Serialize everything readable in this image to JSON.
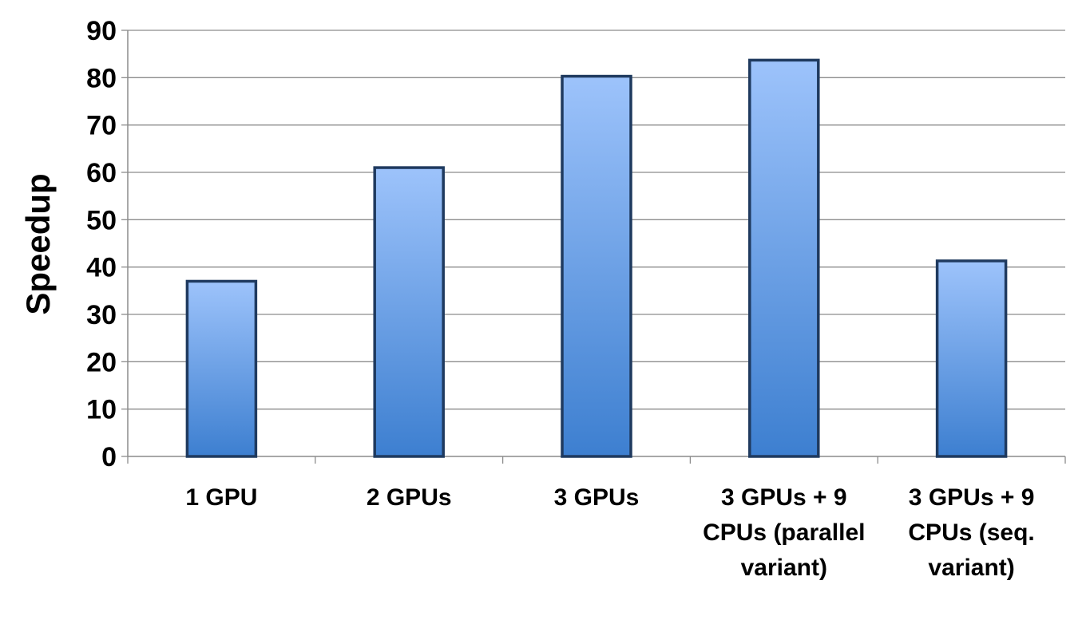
{
  "chart_data": {
    "type": "bar",
    "title": "",
    "xlabel": "",
    "ylabel": "Speedup",
    "ylim": [
      0,
      90
    ],
    "yticks": [
      0,
      10,
      20,
      30,
      40,
      50,
      60,
      70,
      80,
      90
    ],
    "categories": [
      "1 GPU",
      "2 GPUs",
      "3 GPUs",
      "3 GPUs + 9 CPUs (parallel variant)",
      "3 GPUs + 9 CPUs (seq. variant)"
    ],
    "category_lines": [
      [
        "1 GPU"
      ],
      [
        "2 GPUs"
      ],
      [
        "3 GPUs"
      ],
      [
        "3 GPUs + 9",
        "CPUs (parallel",
        "variant)"
      ],
      [
        "3 GPUs + 9",
        "CPUs (seq.",
        "variant)"
      ]
    ],
    "values": [
      37,
      61,
      80.3,
      83.7,
      41.3
    ],
    "grid": true,
    "legend": "none",
    "colors": {
      "bar_top": "#9dc3fb",
      "bar_bottom": "#3d7fd0",
      "bar_border": "#1f3a5f",
      "grid": "#8c8c8c",
      "axis": "#8c8c8c"
    }
  }
}
